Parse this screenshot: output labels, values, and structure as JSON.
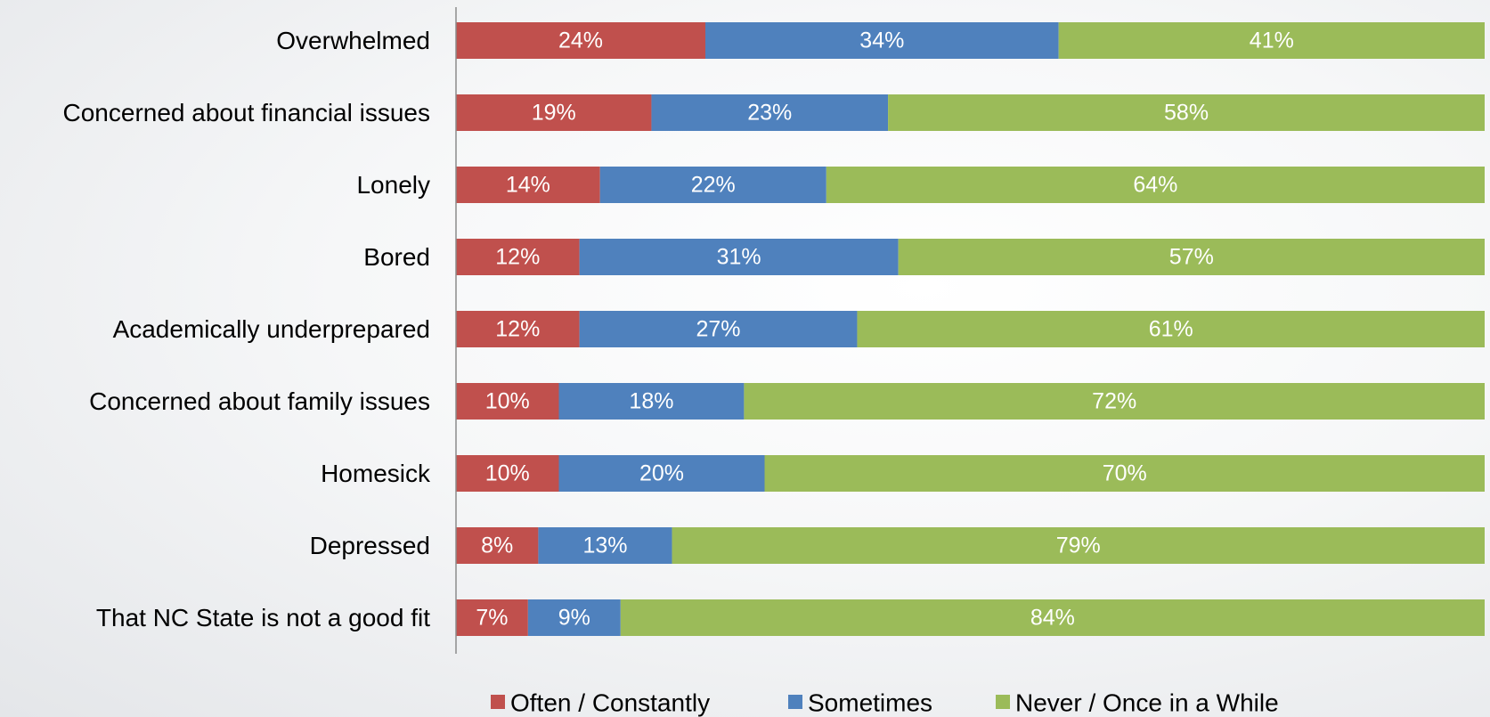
{
  "chart_data": {
    "type": "bar",
    "orientation": "horizontal",
    "stacked": true,
    "percent": true,
    "title": "",
    "xlabel": "",
    "ylabel": "",
    "xlim": [
      0,
      100
    ],
    "grid": false,
    "legend_position": "bottom",
    "categories": [
      "Overwhelmed",
      "Concerned about financial issues",
      "Lonely",
      "Bored",
      "Academically underprepared",
      "Concerned about family issues",
      "Homesick",
      "Depressed",
      "That NC State is not a good fit"
    ],
    "series": [
      {
        "name": "Often / Constantly",
        "color": "#c0504d",
        "values": [
          24,
          19,
          14,
          12,
          12,
          10,
          10,
          8,
          7
        ],
        "labels": [
          "24%",
          "19%",
          "14%",
          "12%",
          "12%",
          "10%",
          "10%",
          "8%",
          "7%"
        ]
      },
      {
        "name": "Sometimes",
        "color": "#4f81bd",
        "values": [
          34,
          23,
          22,
          31,
          27,
          18,
          20,
          13,
          9
        ],
        "labels": [
          "34%",
          "23%",
          "22%",
          "31%",
          "27%",
          "18%",
          "20%",
          "13%",
          "9%"
        ]
      },
      {
        "name": "Never / Once in a While",
        "color": "#9bbb59",
        "values": [
          41,
          58,
          64,
          57,
          61,
          72,
          70,
          79,
          84
        ],
        "labels": [
          "41%",
          "58%",
          "64%",
          "57%",
          "61%",
          "72%",
          "70%",
          "79%",
          "84%"
        ]
      }
    ]
  }
}
